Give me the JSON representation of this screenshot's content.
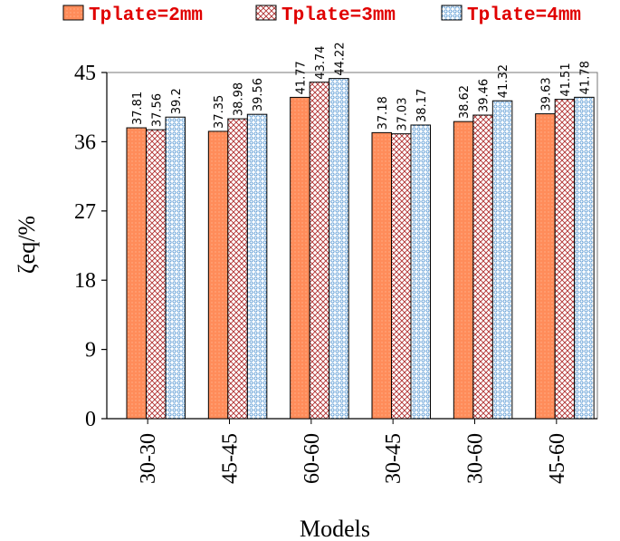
{
  "chart_data": {
    "type": "bar",
    "xlabel": "Models",
    "ylabel": "ζeq/%",
    "ylim": [
      0,
      45
    ],
    "yticks": [
      "0",
      "9",
      "18",
      "27",
      "36",
      "45"
    ],
    "categories": [
      "30-30",
      "45-45",
      "60-60",
      "30-45",
      "30-60",
      "45-60"
    ],
    "series": [
      {
        "name": "Tplate=2mm",
        "values": [
          37.81,
          37.35,
          41.77,
          37.18,
          38.62,
          39.63
        ],
        "labels": [
          "37.81",
          "37.35",
          "41.77",
          "37.18",
          "38.62",
          "39.63"
        ]
      },
      {
        "name": "Tplate=3mm",
        "values": [
          37.56,
          38.98,
          43.74,
          37.03,
          39.46,
          41.51
        ],
        "labels": [
          "37.56",
          "38.98",
          "43.74",
          "37.03",
          "39.46",
          "41.51"
        ]
      },
      {
        "name": "Tplate=4mm",
        "values": [
          39.2,
          39.56,
          44.22,
          38.17,
          41.32,
          41.78
        ],
        "labels": [
          "39.2",
          "39.56",
          "44.22",
          "38.17",
          "41.32",
          "41.78"
        ]
      }
    ],
    "legend_position": "top",
    "grid": false,
    "colors": {
      "series_fill": [
        "#ff8c5a",
        "#e8c8c8",
        "#cfe6f5"
      ],
      "series_pattern": [
        "#ffb08a",
        "#b03030",
        "#4a90d0"
      ],
      "legend_text": "#e00000"
    }
  }
}
